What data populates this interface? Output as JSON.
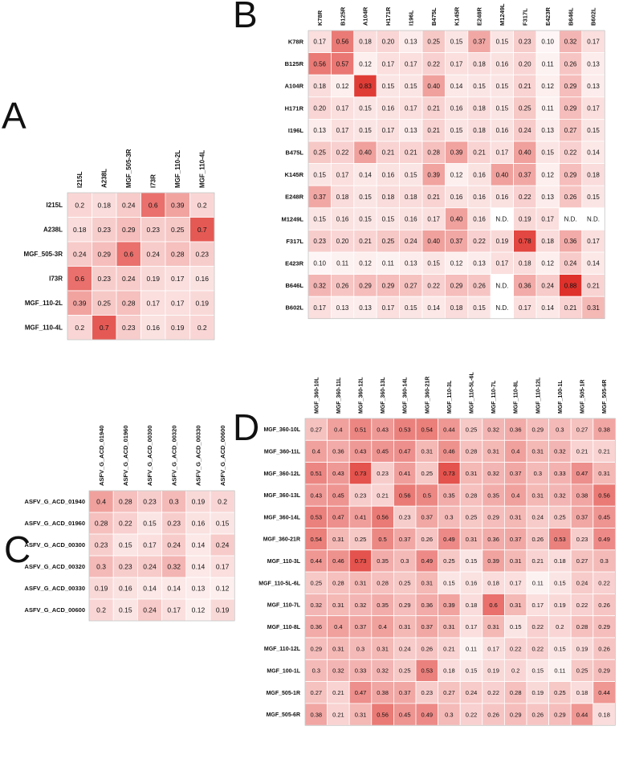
{
  "figure": {
    "panel_labels": [
      "A",
      "B",
      "C",
      "D"
    ]
  },
  "chart_data": [
    {
      "type": "heatmap",
      "panel": "A",
      "title": "",
      "rows": [
        "I215L",
        "A238L",
        "MGF_505-3R",
        "I73R",
        "MGF_110-2L",
        "MGF_110-4L"
      ],
      "cols": [
        "I215L",
        "A238L",
        "MGF_505-3R",
        "I73R",
        "MGF_110-2L",
        "MGF_110-4L"
      ],
      "values": [
        [
          "0.2",
          "0.18",
          "0.24",
          "0.6",
          "0.39",
          "0.2"
        ],
        [
          "0.18",
          "0.23",
          "0.29",
          "0.23",
          "0.25",
          "0.7"
        ],
        [
          "0.24",
          "0.29",
          "0.6",
          "0.24",
          "0.28",
          "0.23"
        ],
        [
          "0.6",
          "0.23",
          "0.24",
          "0.19",
          "0.17",
          "0.16"
        ],
        [
          "0.39",
          "0.25",
          "0.28",
          "0.17",
          "0.17",
          "0.19"
        ],
        [
          "0.2",
          "0.7",
          "0.23",
          "0.16",
          "0.19",
          "0.2"
        ]
      ],
      "color_low": "#ffffff",
      "color_high": "#de2d26"
    },
    {
      "type": "heatmap",
      "panel": "B",
      "title": "",
      "rows": [
        "K78R",
        "B125R",
        "A104R",
        "H171R",
        "I196L",
        "B475L",
        "K145R",
        "E248R",
        "M1249L",
        "F317L",
        "E423R",
        "B646L",
        "B602L"
      ],
      "cols": [
        "K78R",
        "B125R",
        "A104R",
        "H171R",
        "I196L",
        "B475L",
        "K145R",
        "E248R",
        "M1249L",
        "F317L",
        "E423R",
        "B646L",
        "B602L"
      ],
      "values": [
        [
          "0.17",
          "0.56",
          "0.18",
          "0.20",
          "0.13",
          "0.25",
          "0.15",
          "0.37",
          "0.15",
          "0.23",
          "0.10",
          "0.32",
          "0.17"
        ],
        [
          "0.56",
          "0.57",
          "0.12",
          "0.17",
          "0.17",
          "0.22",
          "0.17",
          "0.18",
          "0.16",
          "0.20",
          "0.11",
          "0.26",
          "0.13"
        ],
        [
          "0.18",
          "0.12",
          "0.83",
          "0.15",
          "0.15",
          "0.40",
          "0.14",
          "0.15",
          "0.15",
          "0.21",
          "0.12",
          "0.29",
          "0.13"
        ],
        [
          "0.20",
          "0.17",
          "0.15",
          "0.16",
          "0.17",
          "0.21",
          "0.16",
          "0.18",
          "0.15",
          "0.25",
          "0.11",
          "0.29",
          "0.17"
        ],
        [
          "0.13",
          "0.17",
          "0.15",
          "0.17",
          "0.13",
          "0.21",
          "0.15",
          "0.18",
          "0.16",
          "0.24",
          "0.13",
          "0.27",
          "0.15"
        ],
        [
          "0.25",
          "0.22",
          "0.40",
          "0.21",
          "0.21",
          "0.28",
          "0.39",
          "0.21",
          "0.17",
          "0.40",
          "0.15",
          "0.22",
          "0.14"
        ],
        [
          "0.15",
          "0.17",
          "0.14",
          "0.16",
          "0.15",
          "0.39",
          "0.12",
          "0.16",
          "0.40",
          "0.37",
          "0.12",
          "0.29",
          "0.18"
        ],
        [
          "0.37",
          "0.18",
          "0.15",
          "0.18",
          "0.18",
          "0.21",
          "0.16",
          "0.16",
          "0.16",
          "0.22",
          "0.13",
          "0.26",
          "0.15"
        ],
        [
          "0.15",
          "0.16",
          "0.15",
          "0.15",
          "0.16",
          "0.17",
          "0.40",
          "0.16",
          "N.D.",
          "0.19",
          "0.17",
          "N.D.",
          "N.D."
        ],
        [
          "0.23",
          "0.20",
          "0.21",
          "0.25",
          "0.24",
          "0.40",
          "0.37",
          "0.22",
          "0.19",
          "0.78",
          "0.18",
          "0.36",
          "0.17"
        ],
        [
          "0.10",
          "0.11",
          "0.12",
          "0.11",
          "0.13",
          "0.15",
          "0.12",
          "0.13",
          "0.17",
          "0.18",
          "0.12",
          "0.24",
          "0.14"
        ],
        [
          "0.32",
          "0.26",
          "0.29",
          "0.29",
          "0.27",
          "0.22",
          "0.29",
          "0.26",
          "N.D.",
          "0.36",
          "0.24",
          "0.88",
          "0.21"
        ],
        [
          "0.17",
          "0.13",
          "0.13",
          "0.17",
          "0.15",
          "0.14",
          "0.18",
          "0.15",
          "N.D.",
          "0.17",
          "0.14",
          "0.21",
          "0.31"
        ]
      ],
      "color_low": "#ffffff",
      "color_high": "#de2d26"
    },
    {
      "type": "heatmap",
      "panel": "C",
      "title": "",
      "rows": [
        "ASFV_G_ACD_01940",
        "ASFV_G_ACD_01960",
        "ASFV_G_ACD_00300",
        "ASFV_G_ACD_00320",
        "ASFV_G_ACD_00330",
        "ASFV_G_ACD_00600"
      ],
      "cols": [
        "ASFV_G_ACD_01940",
        "ASFV_G_ACD_01960",
        "ASFV_G_ACD_00300",
        "ASFV_G_ACD_00320",
        "ASFV_G_ACD_00330",
        "ASFV_G_ACD_00600"
      ],
      "values": [
        [
          "0.4",
          "0.28",
          "0.23",
          "0.3",
          "0.19",
          "0.2"
        ],
        [
          "0.28",
          "0.22",
          "0.15",
          "0.23",
          "0.16",
          "0.15"
        ],
        [
          "0.23",
          "0.15",
          "0.17",
          "0.24",
          "0.14",
          "0.24"
        ],
        [
          "0.3",
          "0.23",
          "0.24",
          "0.32",
          "0.14",
          "0.17"
        ],
        [
          "0.19",
          "0.16",
          "0.14",
          "0.14",
          "0.13",
          "0.12"
        ],
        [
          "0.2",
          "0.15",
          "0.24",
          "0.17",
          "0.12",
          "0.19"
        ]
      ],
      "color_low": "#ffffff",
      "color_high": "#de2d26"
    },
    {
      "type": "heatmap",
      "panel": "D",
      "title": "",
      "rows": [
        "MGF_360-10L",
        "MGF_360-11L",
        "MGF_360-12L",
        "MGF_360-13L",
        "MGF_360-14L",
        "MGF_360-21R",
        "MGF_110-3L",
        "MGF_110-5L-6L",
        "MGF_110-7L",
        "MGF_110-8L",
        "MGF_110-12L",
        "MGF_100-1L",
        "MGF_505-1R",
        "MGF_505-6R"
      ],
      "cols": [
        "MGF_360-10L",
        "MGF_360-11L",
        "MGF_360-12L",
        "MGF_360-13L",
        "MGF_360-14L",
        "MGF_360-21R",
        "MGF_110-3L",
        "MGF_110-5L-6L",
        "MGF_110-7L",
        "MGF_110-8L",
        "MGF_110-12L",
        "MGF_100-1L",
        "MGF_505-1R",
        "MGF_505-6R"
      ],
      "values": [
        [
          "0.27",
          "0.4",
          "0.51",
          "0.43",
          "0.53",
          "0.54",
          "0.44",
          "0.25",
          "0.32",
          "0.36",
          "0.29",
          "0.3",
          "0.27",
          "0.38"
        ],
        [
          "0.4",
          "0.36",
          "0.43",
          "0.45",
          "0.47",
          "0.31",
          "0.46",
          "0.28",
          "0.31",
          "0.4",
          "0.31",
          "0.32",
          "0.21",
          "0.21"
        ],
        [
          "0.51",
          "0.43",
          "0.73",
          "0.23",
          "0.41",
          "0.25",
          "0.73",
          "0.31",
          "0.32",
          "0.37",
          "0.3",
          "0.33",
          "0.47",
          "0.31"
        ],
        [
          "0.43",
          "0.45",
          "0.23",
          "0.21",
          "0.56",
          "0.5",
          "0.35",
          "0.28",
          "0.35",
          "0.4",
          "0.31",
          "0.32",
          "0.38",
          "0.56"
        ],
        [
          "0.53",
          "0.47",
          "0.41",
          "0.56",
          "0.23",
          "0.37",
          "0.3",
          "0.25",
          "0.29",
          "0.31",
          "0.24",
          "0.25",
          "0.37",
          "0.45"
        ],
        [
          "0.54",
          "0.31",
          "0.25",
          "0.5",
          "0.37",
          "0.26",
          "0.49",
          "0.31",
          "0.36",
          "0.37",
          "0.26",
          "0.53",
          "0.23",
          "0.49"
        ],
        [
          "0.44",
          "0.46",
          "0.73",
          "0.35",
          "0.3",
          "0.49",
          "0.25",
          "0.15",
          "0.39",
          "0.31",
          "0.21",
          "0.18",
          "0.27",
          "0.3"
        ],
        [
          "0.25",
          "0.28",
          "0.31",
          "0.28",
          "0.25",
          "0.31",
          "0.15",
          "0.16",
          "0.18",
          "0.17",
          "0.11",
          "0.15",
          "0.24",
          "0.22"
        ],
        [
          "0.32",
          "0.31",
          "0.32",
          "0.35",
          "0.29",
          "0.36",
          "0.39",
          "0.18",
          "0.6",
          "0.31",
          "0.17",
          "0.19",
          "0.22",
          "0.26"
        ],
        [
          "0.36",
          "0.4",
          "0.37",
          "0.4",
          "0.31",
          "0.37",
          "0.31",
          "0.17",
          "0.31",
          "0.15",
          "0.22",
          "0.2",
          "0.28",
          "0.29"
        ],
        [
          "0.29",
          "0.31",
          "0.3",
          "0.31",
          "0.24",
          "0.26",
          "0.21",
          "0.11",
          "0.17",
          "0.22",
          "0.22",
          "0.15",
          "0.19",
          "0.26"
        ],
        [
          "0.3",
          "0.32",
          "0.33",
          "0.32",
          "0.25",
          "0.53",
          "0.18",
          "0.15",
          "0.19",
          "0.2",
          "0.15",
          "0.11",
          "0.25",
          "0.29"
        ],
        [
          "0.27",
          "0.21",
          "0.47",
          "0.38",
          "0.37",
          "0.23",
          "0.27",
          "0.24",
          "0.22",
          "0.28",
          "0.19",
          "0.25",
          "0.18",
          "0.44"
        ],
        [
          "0.38",
          "0.21",
          "0.31",
          "0.56",
          "0.45",
          "0.49",
          "0.3",
          "0.22",
          "0.26",
          "0.29",
          "0.26",
          "0.29",
          "0.44",
          "0.18"
        ]
      ],
      "color_low": "#ffffff",
      "color_high": "#de2d26"
    }
  ]
}
